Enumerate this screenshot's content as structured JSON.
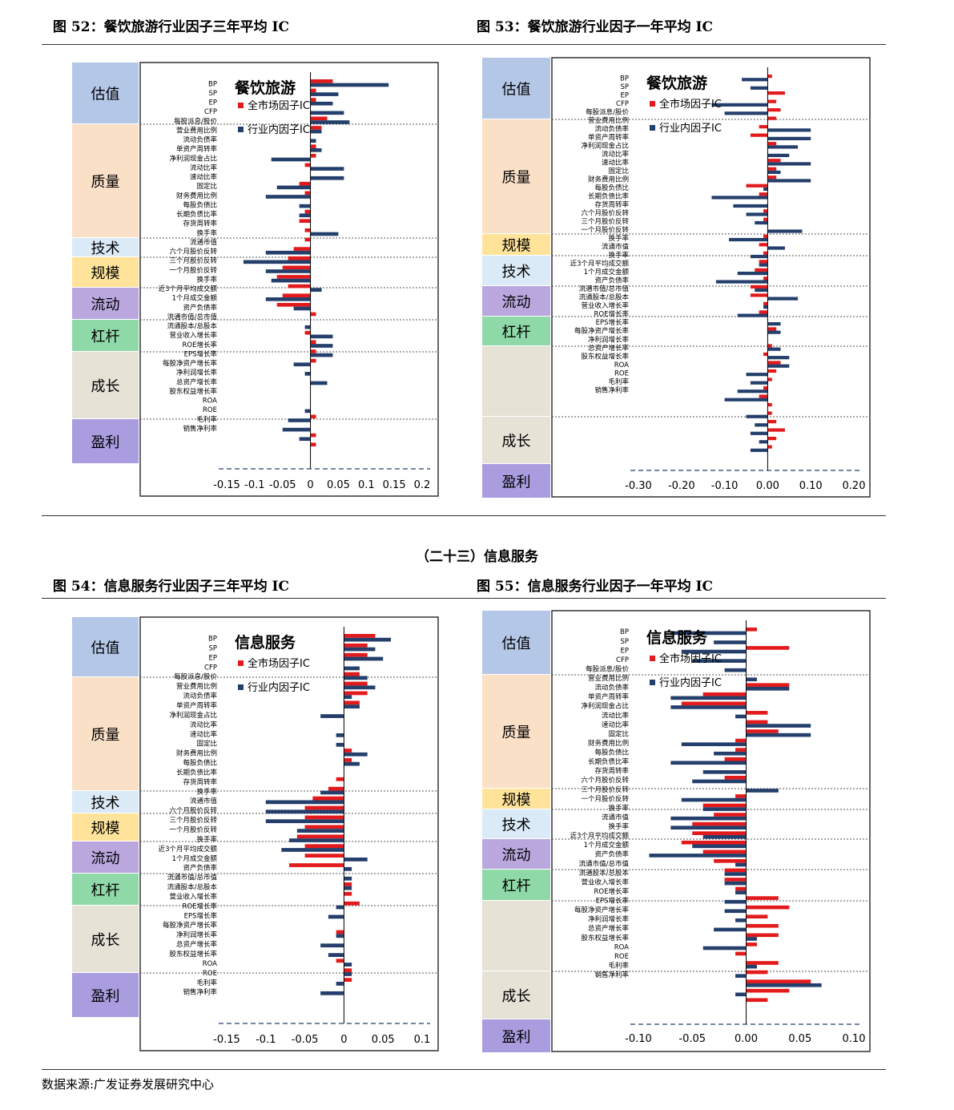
{
  "page": {
    "section_title": "（二十三）信息服务",
    "source": "数据来源:广发证券发展研究中心"
  },
  "colors": {
    "full_market": "#e31a1c",
    "industry": "#243f6b"
  },
  "factor_labels": {
    "valuation": [
      "BP",
      "SP",
      "EP",
      "CFP",
      "每股派息/股价"
    ],
    "quality": [
      "营业费用比例",
      "流动负债率",
      "单资产周转率",
      "净利润现金占比",
      "流动比率",
      "速动比率",
      "固定比",
      "财务费用比例",
      "每股负债比",
      "长期负债比率",
      "存货周转率"
    ],
    "tech": [
      "换手率",
      "流通市值"
    ],
    "scale": [
      "六个月股价反转",
      "三个月股价反转",
      "一个月股价反转"
    ],
    "liquidity": [
      "换手率",
      "近3个月平均成交额",
      "1个月成交金额"
    ],
    "leverage": [
      "资产负债率",
      "流通市值/总市值",
      "流通股本/总股本"
    ],
    "growth": [
      "营业收入增长率",
      "ROE增长率",
      "EPS增长率",
      "每股净资产增长率",
      "净利润增长率",
      "总资产增长率",
      "股东权益增长率"
    ],
    "profit": [
      "ROA",
      "ROE",
      "毛利率",
      "销售净利率"
    ]
  },
  "charts": [
    {
      "fig_title": "图 52：餐饮旅游行业因子三年平均 IC",
      "chart_title": "餐饮旅游",
      "legend": [
        "全市场因子IC",
        "行业内因子IC"
      ],
      "x_ticks": [
        "-0.15",
        "-0.1",
        "-0.05",
        "0",
        "0.05",
        "0.1",
        "0.15",
        "0.2"
      ],
      "categories": [
        "估值",
        "质量",
        "技术",
        "规模",
        "流动",
        "杠杆",
        "成长",
        "盈利"
      ]
    },
    {
      "fig_title": "图 53：餐饮旅游行业因子一年平均 IC",
      "chart_title": "餐饮旅游",
      "legend": [
        "全市场因子IC",
        "行业内因子IC"
      ],
      "x_ticks": [
        "-0.30",
        "-0.20",
        "-0.10",
        "0.00",
        "0.10",
        "0.20"
      ],
      "categories": [
        "估值",
        "质量",
        "规模",
        "技术",
        "流动",
        "杠杆",
        "",
        "成长",
        "盈利"
      ]
    },
    {
      "fig_title": "图 54：信息服务行业因子三年平均 IC",
      "chart_title": "信息服务",
      "legend": [
        "全市场因子IC",
        "行业内因子IC"
      ],
      "x_ticks": [
        "-0.15",
        "-0.1",
        "-0.05",
        "0",
        "0.05",
        "0.1"
      ],
      "categories": [
        "估值",
        "质量",
        "技术",
        "规模",
        "流动",
        "杠杆",
        "成长",
        "盈利"
      ]
    },
    {
      "fig_title": "图 55：信息服务行业因子一年平均 IC",
      "chart_title": "信息服务",
      "legend": [
        "全市场因子IC",
        "行业内因子IC"
      ],
      "x_ticks": [
        "-0.10",
        "-0.05",
        "0.00",
        "0.05",
        "0.10"
      ],
      "categories": [
        "估值",
        "质量",
        "规模",
        "技术",
        "流动",
        "杠杆",
        "",
        "成长",
        "盈利"
      ]
    }
  ],
  "chart_data": [
    {
      "type": "bar",
      "title": "餐饮旅游",
      "xlim": [
        -0.15,
        0.2
      ],
      "series": [
        {
          "name": "全市场因子IC",
          "values": [
            0.04,
            0.01,
            0.01,
            0.0,
            0.03,
            0.02,
            0.0,
            0.01,
            0.01,
            -0.01,
            0.0,
            -0.02,
            -0.01,
            0.0,
            -0.01,
            -0.02,
            -0.01,
            -0.01,
            -0.03,
            -0.04,
            -0.05,
            -0.06,
            -0.04,
            -0.05,
            -0.06,
            0.01,
            0.0,
            -0.01,
            0.01,
            0.01,
            0.01,
            0.0,
            0.0,
            0.0,
            0.0,
            0.0,
            0.01,
            0.0,
            0.01,
            0.01
          ]
        },
        {
          "name": "行业内因子IC",
          "values": [
            0.14,
            0.05,
            0.04,
            0.06,
            0.07,
            0.02,
            0.01,
            0.02,
            -0.07,
            0.06,
            0.06,
            -0.06,
            -0.08,
            -0.02,
            -0.02,
            0.0,
            0.05,
            0.0,
            -0.08,
            -0.12,
            -0.08,
            -0.07,
            0.02,
            -0.08,
            -0.03,
            0.0,
            -0.01,
            0.04,
            0.04,
            0.04,
            -0.03,
            -0.01,
            0.03,
            0.0,
            0.0,
            -0.01,
            -0.04,
            -0.05,
            -0.02,
            0.0
          ]
        }
      ]
    },
    {
      "type": "bar",
      "title": "餐饮旅游",
      "xlim": [
        -0.3,
        0.2
      ],
      "series": [
        {
          "name": "全市场因子IC",
          "values": [
            0.01,
            0.0,
            0.04,
            0.02,
            0.03,
            0.02,
            -0.02,
            -0.04,
            0.02,
            0.0,
            0.03,
            0.02,
            0.02,
            -0.05,
            -0.02,
            0.0,
            -0.01,
            -0.01,
            0.0,
            -0.01,
            -0.02,
            -0.01,
            -0.02,
            -0.03,
            -0.01,
            -0.04,
            -0.04,
            -0.01,
            -0.02,
            0.0,
            0.02,
            0.0,
            0.01,
            -0.01,
            0.03,
            0.02,
            0.01,
            -0.01,
            -0.02,
            0.01,
            0.01,
            0.02,
            0.04,
            0.02,
            0.01
          ]
        },
        {
          "name": "行业内因子IC",
          "values": [
            -0.06,
            -0.04,
            0.0,
            -0.13,
            -0.1,
            0.0,
            0.1,
            0.1,
            0.07,
            0.05,
            0.1,
            0.03,
            0.1,
            -0.01,
            -0.13,
            -0.08,
            -0.05,
            -0.03,
            0.08,
            -0.09,
            0.04,
            -0.04,
            -0.02,
            -0.07,
            -0.12,
            -0.03,
            0.07,
            -0.01,
            -0.07,
            0.03,
            0.03,
            0.0,
            0.03,
            0.05,
            0.05,
            -0.05,
            -0.04,
            -0.07,
            -0.1,
            0.0,
            -0.05,
            -0.03,
            -0.04,
            -0.02,
            -0.04
          ]
        }
      ]
    },
    {
      "type": "bar",
      "title": "信息服务",
      "xlim": [
        -0.15,
        0.1
      ],
      "series": [
        {
          "name": "全市场因子IC",
          "values": [
            0.04,
            0.03,
            0.03,
            0.0,
            0.02,
            0.03,
            0.03,
            0.02,
            0.0,
            0.0,
            0.0,
            0.0,
            0.01,
            0.01,
            0.0,
            -0.01,
            -0.02,
            -0.04,
            -0.05,
            -0.05,
            -0.05,
            -0.06,
            -0.05,
            -0.05,
            -0.07,
            0.0,
            0.01,
            0.01,
            0.02,
            0.0,
            0.0,
            -0.01,
            0.0,
            0.0,
            -0.01,
            0.01,
            0.01,
            0.0,
            0.0
          ]
        },
        {
          "name": "行业内因子IC",
          "values": [
            0.06,
            0.04,
            0.05,
            0.02,
            0.03,
            0.04,
            0.01,
            0.02,
            -0.03,
            0.0,
            -0.01,
            -0.01,
            0.03,
            0.02,
            0.0,
            0.0,
            -0.03,
            -0.1,
            -0.1,
            -0.1,
            -0.06,
            -0.07,
            -0.08,
            0.03,
            0.01,
            0.01,
            0.01,
            0.0,
            -0.01,
            -0.02,
            0.0,
            -0.01,
            -0.03,
            -0.02,
            0.01,
            0.01,
            -0.01,
            -0.03,
            0.0
          ]
        }
      ]
    },
    {
      "type": "bar",
      "title": "信息服务",
      "xlim": [
        -0.1,
        0.1
      ],
      "series": [
        {
          "name": "全市场因子IC",
          "values": [
            0.01,
            0.0,
            0.04,
            0.0,
            0.0,
            0.0,
            0.04,
            -0.04,
            -0.06,
            0.02,
            0.02,
            0.03,
            -0.01,
            -0.01,
            -0.02,
            0.0,
            -0.02,
            0.0,
            -0.01,
            -0.04,
            -0.03,
            -0.05,
            -0.05,
            -0.06,
            -0.04,
            -0.03,
            -0.02,
            -0.02,
            -0.01,
            0.03,
            0.04,
            0.02,
            0.03,
            0.03,
            0.01,
            -0.01,
            0.03,
            0.02,
            0.06,
            0.04,
            0.02
          ]
        },
        {
          "name": "行业内因子IC",
          "values": [
            -0.07,
            -0.03,
            -0.06,
            -0.05,
            -0.02,
            0.01,
            0.04,
            -0.07,
            -0.07,
            -0.01,
            0.06,
            0.06,
            -0.06,
            -0.03,
            -0.07,
            -0.04,
            -0.05,
            0.03,
            -0.06,
            -0.04,
            -0.07,
            -0.07,
            -0.04,
            -0.05,
            -0.09,
            -0.01,
            -0.02,
            -0.02,
            -0.01,
            -0.02,
            -0.02,
            -0.01,
            -0.03,
            0.01,
            -0.04,
            0.0,
            0.01,
            -0.01,
            0.07,
            -0.01,
            0.0
          ]
        }
      ]
    }
  ]
}
